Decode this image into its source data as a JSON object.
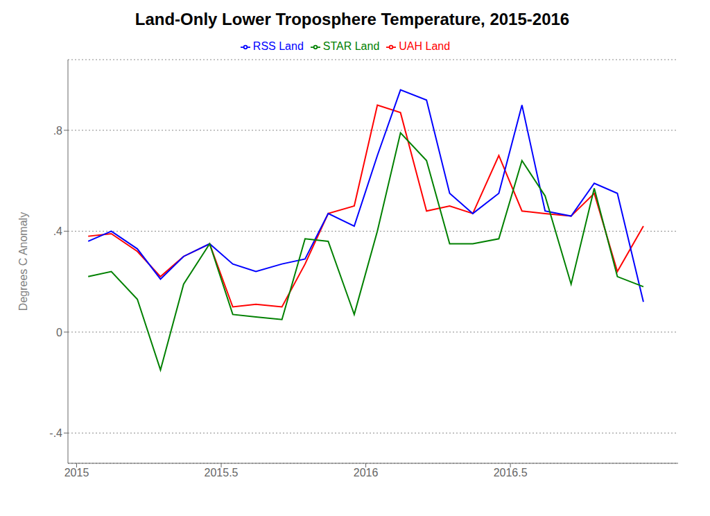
{
  "chart_data": {
    "type": "line",
    "title": "Land-Only Lower Troposphere Temperature, 2015-2016",
    "y_label": "Degrees C Anomaly",
    "x": [
      2015.04,
      2015.12,
      2015.21,
      2015.29,
      2015.37,
      2015.46,
      2015.54,
      2015.62,
      2015.71,
      2015.79,
      2015.87,
      2015.96,
      2016.04,
      2016.12,
      2016.21,
      2016.29,
      2016.37,
      2016.46,
      2016.54,
      2016.62,
      2016.71,
      2016.79,
      2016.87,
      2016.96
    ],
    "series": [
      {
        "name": "UAH Land",
        "color": "#ff0000",
        "values": [
          0.38,
          0.39,
          0.32,
          0.22,
          0.3,
          0.35,
          0.1,
          0.11,
          0.1,
          0.27,
          0.47,
          0.5,
          0.9,
          0.87,
          0.48,
          0.5,
          0.47,
          0.7,
          0.48,
          0.47,
          0.46,
          0.55,
          0.24,
          0.42
        ]
      },
      {
        "name": "RSS Land",
        "color": "#0000ff",
        "values": [
          0.36,
          0.4,
          0.33,
          0.21,
          0.3,
          0.35,
          0.27,
          0.24,
          0.27,
          0.29,
          0.47,
          0.42,
          0.7,
          0.96,
          0.92,
          0.55,
          0.47,
          0.55,
          0.9,
          0.48,
          0.46,
          0.59,
          0.55,
          0.12
        ]
      },
      {
        "name": "STAR Land",
        "color": "#008000",
        "values": [
          0.22,
          0.24,
          0.13,
          -0.15,
          0.19,
          0.35,
          0.07,
          0.06,
          0.05,
          0.37,
          0.36,
          0.07,
          0.4,
          0.79,
          0.68,
          0.35,
          0.35,
          0.37,
          0.68,
          0.54,
          0.19,
          0.57,
          0.22,
          0.18
        ]
      }
    ],
    "xlim": [
      2014.97,
      2017.08
    ],
    "ylim": [
      -0.52,
      1.08
    ],
    "xticks": [
      2015,
      2015.5,
      2016,
      2016.5
    ],
    "yticks": [
      {
        "value": -0.4,
        "label": "-.4"
      },
      0,
      {
        "value": 0.4,
        "label": ".4"
      },
      {
        "value": 0.8,
        "label": ".8"
      }
    ],
    "grid": "y",
    "legend": "top"
  }
}
